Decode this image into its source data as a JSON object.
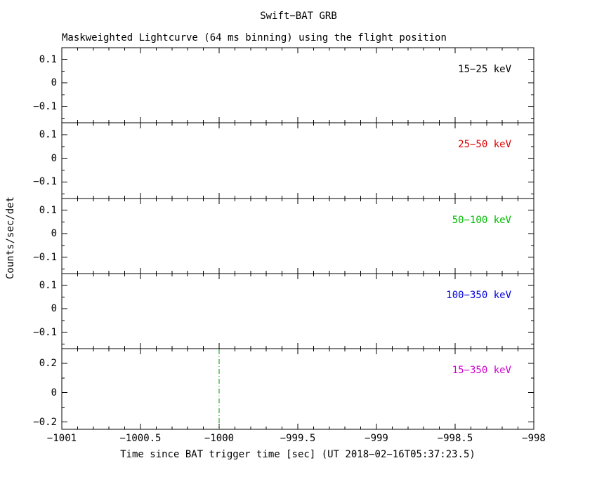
{
  "chart_data": {
    "type": "line",
    "title": "Swift−BAT GRB",
    "subtitle": "Maskweighted Lightcurve (64 ms binning) using the flight position",
    "xlabel": "Time since BAT trigger time [sec] (UT 2018−02−16T05:37:23.5)",
    "ylabel": "Counts/sec/det",
    "xlim": [
      -1001,
      -998
    ],
    "x_ticks": [
      -1001,
      -1000.5,
      -1000,
      -999.5,
      -999,
      -998.5,
      -998
    ],
    "x_tick_labels": [
      "−1001",
      "−1000.5",
      "−1000",
      "−999.5",
      "−999",
      "−998.5",
      "−998"
    ],
    "x_minor_step": 0.1,
    "grid": "off",
    "panels": [
      {
        "label": "15−25 keV",
        "color": "#000000",
        "ylim": [
          -0.17,
          0.15
        ],
        "yticks": [
          0.1,
          0,
          -0.1
        ],
        "ytick_labels": [
          "0.1",
          "0",
          "−0.1"
        ],
        "y_minor_step": 0.05,
        "series": []
      },
      {
        "label": "25−50 keV",
        "color": "#dd0000",
        "ylim": [
          -0.17,
          0.15
        ],
        "yticks": [
          0.1,
          0,
          -0.1
        ],
        "ytick_labels": [
          "0.1",
          "0",
          "−0.1"
        ],
        "y_minor_step": 0.05,
        "series": []
      },
      {
        "label": "50−100 keV",
        "color": "#00bb00",
        "ylim": [
          -0.17,
          0.15
        ],
        "yticks": [
          0.1,
          0,
          -0.1
        ],
        "ytick_labels": [
          "0.1",
          "0",
          "−0.1"
        ],
        "y_minor_step": 0.05,
        "series": []
      },
      {
        "label": "100−350 keV",
        "color": "#0000dd",
        "ylim": [
          -0.17,
          0.15
        ],
        "yticks": [
          0.1,
          0,
          -0.1
        ],
        "ytick_labels": [
          "0.1",
          "0",
          "−0.1"
        ],
        "y_minor_step": 0.05,
        "series": []
      },
      {
        "label": "15−350 keV",
        "color": "#cc00cc",
        "ylim": [
          -0.25,
          0.3
        ],
        "yticks": [
          0.2,
          0,
          -0.2
        ],
        "ytick_labels": [
          "0.2",
          "0",
          "−0.2"
        ],
        "y_minor_step": 0.1,
        "series": [],
        "vline": {
          "x": -1000,
          "color": "#009900",
          "style": "dash-dot"
        }
      }
    ]
  }
}
